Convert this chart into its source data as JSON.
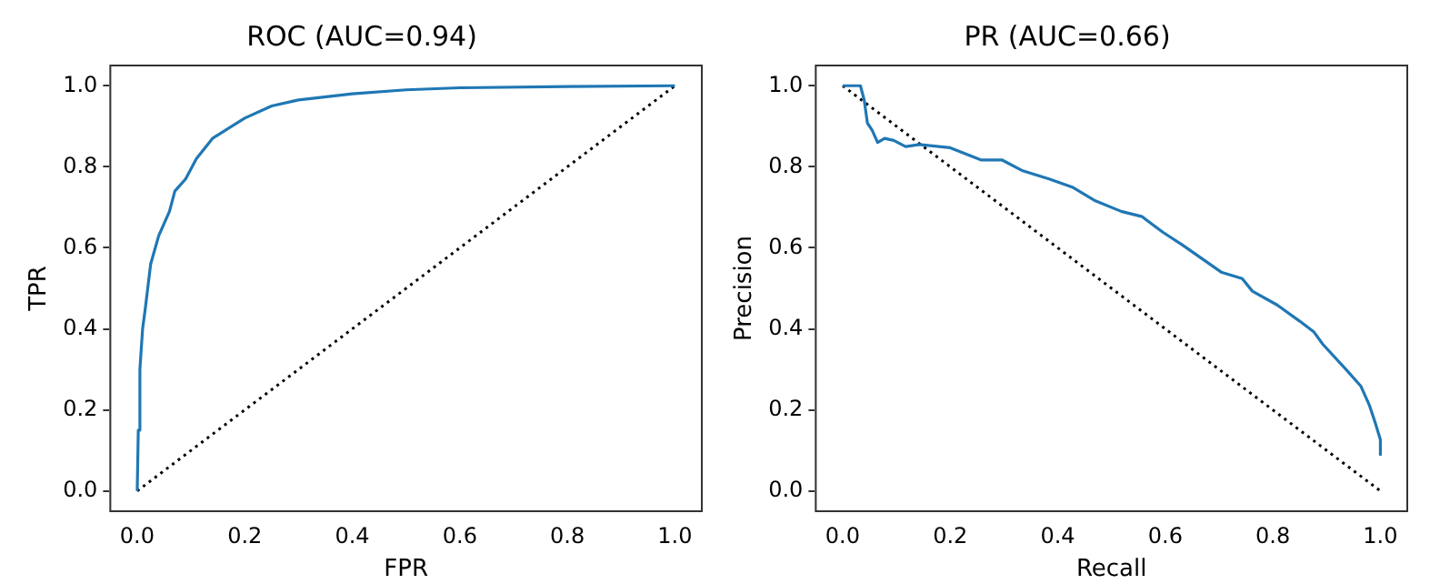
{
  "chart_data": [
    {
      "type": "line",
      "title": "ROC (AUC=0.94)",
      "xlabel": "FPR",
      "ylabel": "TPR",
      "xlim": [
        -0.05,
        1.05
      ],
      "ylim": [
        -0.05,
        1.05
      ],
      "xticks": [
        {
          "value": 0,
          "label": "0.0"
        },
        {
          "value": 0.2,
          "label": "0.2"
        },
        {
          "value": 0.4,
          "label": "0.4"
        },
        {
          "value": 0.6,
          "label": "0.6"
        },
        {
          "value": 0.8,
          "label": "0.8"
        },
        {
          "value": 1,
          "label": "1.0"
        }
      ],
      "yticks": [
        {
          "value": 0,
          "label": "0.0"
        },
        {
          "value": 0.2,
          "label": "0.2"
        },
        {
          "value": 0.4,
          "label": "0.4"
        },
        {
          "value": 0.6,
          "label": "0.6"
        },
        {
          "value": 0.8,
          "label": "0.8"
        },
        {
          "value": 1,
          "label": "1.0"
        }
      ],
      "grid": false,
      "legend": false,
      "marker": "none",
      "series": [
        {
          "color": "#1f77b4",
          "line_style": "solid",
          "x": [
            0,
            0.002,
            0.005,
            0.01,
            0.015,
            0.025,
            0.04,
            0.06,
            0.07,
            0.09,
            0.11,
            0.14,
            0.2,
            0.25,
            0.3,
            0.4,
            0.5,
            0.6,
            0.8,
            1.0
          ],
          "values": [
            0,
            0.15,
            0.3,
            0.4,
            0.45,
            0.56,
            0.63,
            0.69,
            0.74,
            0.77,
            0.82,
            0.87,
            0.92,
            0.95,
            0.965,
            0.98,
            0.99,
            0.995,
            0.998,
            1.0
          ]
        },
        {
          "type": "line",
          "color": "#000000",
          "line_style": "dotted",
          "x": [
            0,
            1
          ],
          "values": [
            0,
            1
          ]
        }
      ]
    },
    {
      "type": "line",
      "title": "PR (AUC=0.66)",
      "xlabel": "Recall",
      "ylabel": "Precision",
      "xlim": [
        -0.05,
        1.05
      ],
      "ylim": [
        -0.05,
        1.05
      ],
      "xticks": [
        {
          "value": 0,
          "label": "0.0"
        },
        {
          "value": 0.2,
          "label": "0.2"
        },
        {
          "value": 0.4,
          "label": "0.4"
        },
        {
          "value": 0.6,
          "label": "0.6"
        },
        {
          "value": 0.8,
          "label": "0.8"
        },
        {
          "value": 1,
          "label": "1.0"
        }
      ],
      "yticks": [
        {
          "value": 0,
          "label": "0.0"
        },
        {
          "value": 0.2,
          "label": "0.2"
        },
        {
          "value": 0.4,
          "label": "0.4"
        },
        {
          "value": 0.6,
          "label": "0.6"
        },
        {
          "value": 0.8,
          "label": "0.8"
        },
        {
          "value": 1,
          "label": "1.0"
        }
      ],
      "grid": false,
      "legend": false,
      "marker": "none",
      "series": [
        {
          "color": "#1f77b4",
          "line_style": "solid",
          "x": [
            0,
            0.033,
            0.04,
            0.046,
            0.055,
            0.065,
            0.078,
            0.095,
            0.117,
            0.143,
            0.2,
            0.257,
            0.296,
            0.335,
            0.384,
            0.427,
            0.47,
            0.518,
            0.557,
            0.596,
            0.632,
            0.704,
            0.743,
            0.762,
            0.808,
            0.85,
            0.876,
            0.893,
            0.938,
            0.964,
            0.98,
            0.99,
            1.0,
            1.0
          ],
          "values": [
            1,
            1,
            0.965,
            0.908,
            0.89,
            0.86,
            0.87,
            0.865,
            0.85,
            0.855,
            0.847,
            0.817,
            0.817,
            0.79,
            0.77,
            0.75,
            0.716,
            0.69,
            0.677,
            0.638,
            0.607,
            0.54,
            0.524,
            0.493,
            0.459,
            0.419,
            0.393,
            0.362,
            0.297,
            0.258,
            0.21,
            0.17,
            0.127,
            0.09
          ]
        },
        {
          "type": "line",
          "color": "#000000",
          "line_style": "dotted",
          "x": [
            0,
            1
          ],
          "values": [
            1,
            0
          ]
        }
      ]
    }
  ]
}
